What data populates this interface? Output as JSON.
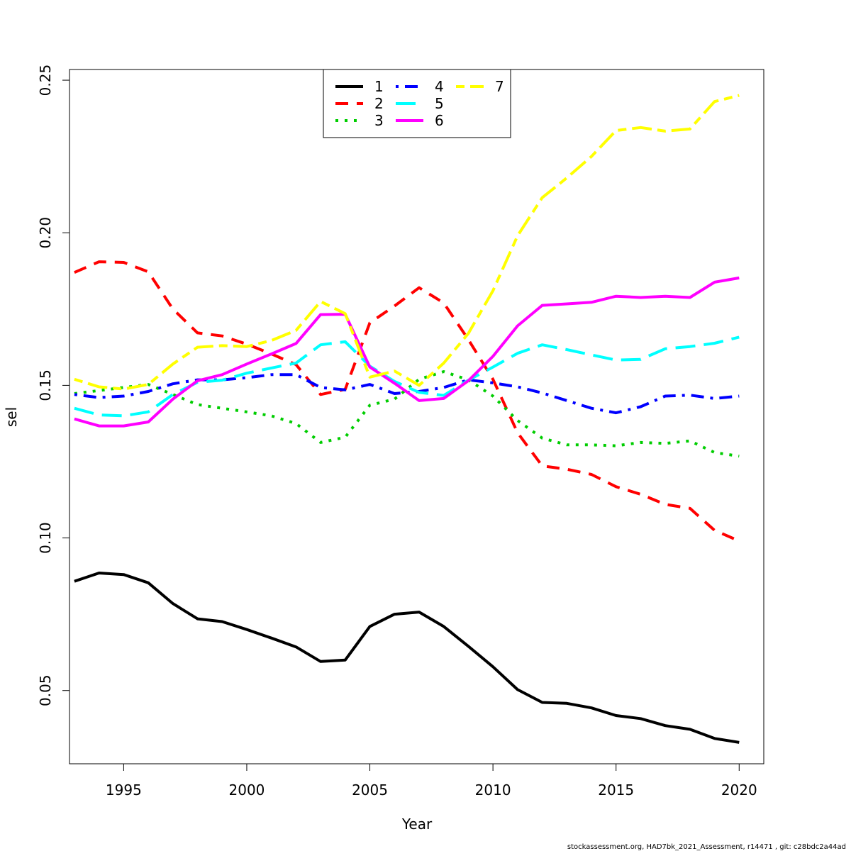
{
  "chart_data": {
    "type": "line",
    "xlabel": "Year",
    "ylabel": "sel",
    "xlim": [
      1992.8,
      2021.0
    ],
    "ylim": [
      0.026,
      0.2535
    ],
    "xticks": [
      1995,
      2000,
      2005,
      2010,
      2015,
      2020
    ],
    "yticks": [
      0.05,
      0.1,
      0.15,
      0.2,
      0.25
    ],
    "ytick_labels": [
      "0.05",
      "0.10",
      "0.15",
      "0.20",
      "0.25"
    ],
    "grid": false,
    "legend_position": "top-center",
    "x": [
      1993,
      1994,
      1995,
      1996,
      1997,
      1998,
      1999,
      2000,
      2001,
      2002,
      2003,
      2004,
      2005,
      2006,
      2007,
      2008,
      2009,
      2010,
      2011,
      2012,
      2013,
      2014,
      2015,
      2016,
      2017,
      2018,
      2019,
      2020
    ],
    "series": [
      {
        "name": "1",
        "color": "#000000",
        "dash": "solid",
        "values": [
          0.0858,
          0.0885,
          0.088,
          0.0853,
          0.0785,
          0.0735,
          0.0726,
          0.07,
          0.0672,
          0.0643,
          0.0595,
          0.06,
          0.071,
          0.075,
          0.0757,
          0.071,
          0.0645,
          0.0578,
          0.0503,
          0.0461,
          0.0458,
          0.0443,
          0.0418,
          0.0408,
          0.0385,
          0.0373,
          0.0343,
          0.033
        ]
      },
      {
        "name": "2",
        "color": "#ff0000",
        "dash": "dashed",
        "values": [
          0.187,
          0.1905,
          0.1903,
          0.1872,
          0.175,
          0.1672,
          0.1662,
          0.1635,
          0.1603,
          0.1568,
          0.147,
          0.1487,
          0.1705,
          0.176,
          0.182,
          0.177,
          0.165,
          0.152,
          0.1345,
          0.1236,
          0.1225,
          0.1208,
          0.1168,
          0.1143,
          0.111,
          0.1097,
          0.1025,
          0.099
        ]
      },
      {
        "name": "3",
        "color": "#00cd00",
        "dash": "dotted",
        "values": [
          0.1473,
          0.1483,
          0.1493,
          0.1503,
          0.147,
          0.1437,
          0.1425,
          0.1413,
          0.14,
          0.1375,
          0.1313,
          0.133,
          0.1435,
          0.1455,
          0.152,
          0.1545,
          0.1518,
          0.1465,
          0.1385,
          0.1327,
          0.1305,
          0.1305,
          0.1302,
          0.1313,
          0.131,
          0.1318,
          0.128,
          0.1268
        ]
      },
      {
        "name": "4",
        "color": "#0000ff",
        "dash": "dotdash",
        "values": [
          0.147,
          0.146,
          0.1465,
          0.148,
          0.1505,
          0.1518,
          0.1518,
          0.1525,
          0.1535,
          0.1535,
          0.1493,
          0.1485,
          0.1503,
          0.1473,
          0.148,
          0.1493,
          0.1518,
          0.1508,
          0.1495,
          0.1475,
          0.145,
          0.1425,
          0.141,
          0.143,
          0.1465,
          0.1468,
          0.1457,
          0.1465
        ]
      },
      {
        "name": "5",
        "color": "#00ffff",
        "dash": "longdash",
        "values": [
          0.1425,
          0.1403,
          0.14,
          0.1413,
          0.147,
          0.151,
          0.1517,
          0.154,
          0.1557,
          0.1573,
          0.1633,
          0.1643,
          0.1563,
          0.1513,
          0.1477,
          0.1467,
          0.1517,
          0.156,
          0.1605,
          0.1633,
          0.1617,
          0.16,
          0.1583,
          0.1585,
          0.162,
          0.1627,
          0.1638,
          0.1658
        ]
      },
      {
        "name": "6",
        "color": "#ff00ff",
        "dash": "solid",
        "values": [
          0.139,
          0.1367,
          0.1367,
          0.138,
          0.1455,
          0.1515,
          0.1535,
          0.157,
          0.1603,
          0.1637,
          0.1732,
          0.1733,
          0.156,
          0.1507,
          0.145,
          0.1457,
          0.1515,
          0.1595,
          0.1695,
          0.1762,
          0.1767,
          0.1772,
          0.1792,
          0.1788,
          0.1792,
          0.1788,
          0.1838,
          0.1852
        ]
      },
      {
        "name": "7",
        "color": "#ffff00",
        "dash": "twodash",
        "values": [
          0.152,
          0.1495,
          0.1488,
          0.1503,
          0.157,
          0.1625,
          0.163,
          0.1627,
          0.1647,
          0.168,
          0.1775,
          0.1735,
          0.1527,
          0.1547,
          0.15,
          0.1573,
          0.167,
          0.181,
          0.199,
          0.2115,
          0.218,
          0.225,
          0.2335,
          0.2345,
          0.2333,
          0.234,
          0.243,
          0.245
        ]
      }
    ]
  },
  "footer": "stockassessment.org, HAD7bk_2021_Assessment, r14471 , git: c28bdc2a44ad"
}
